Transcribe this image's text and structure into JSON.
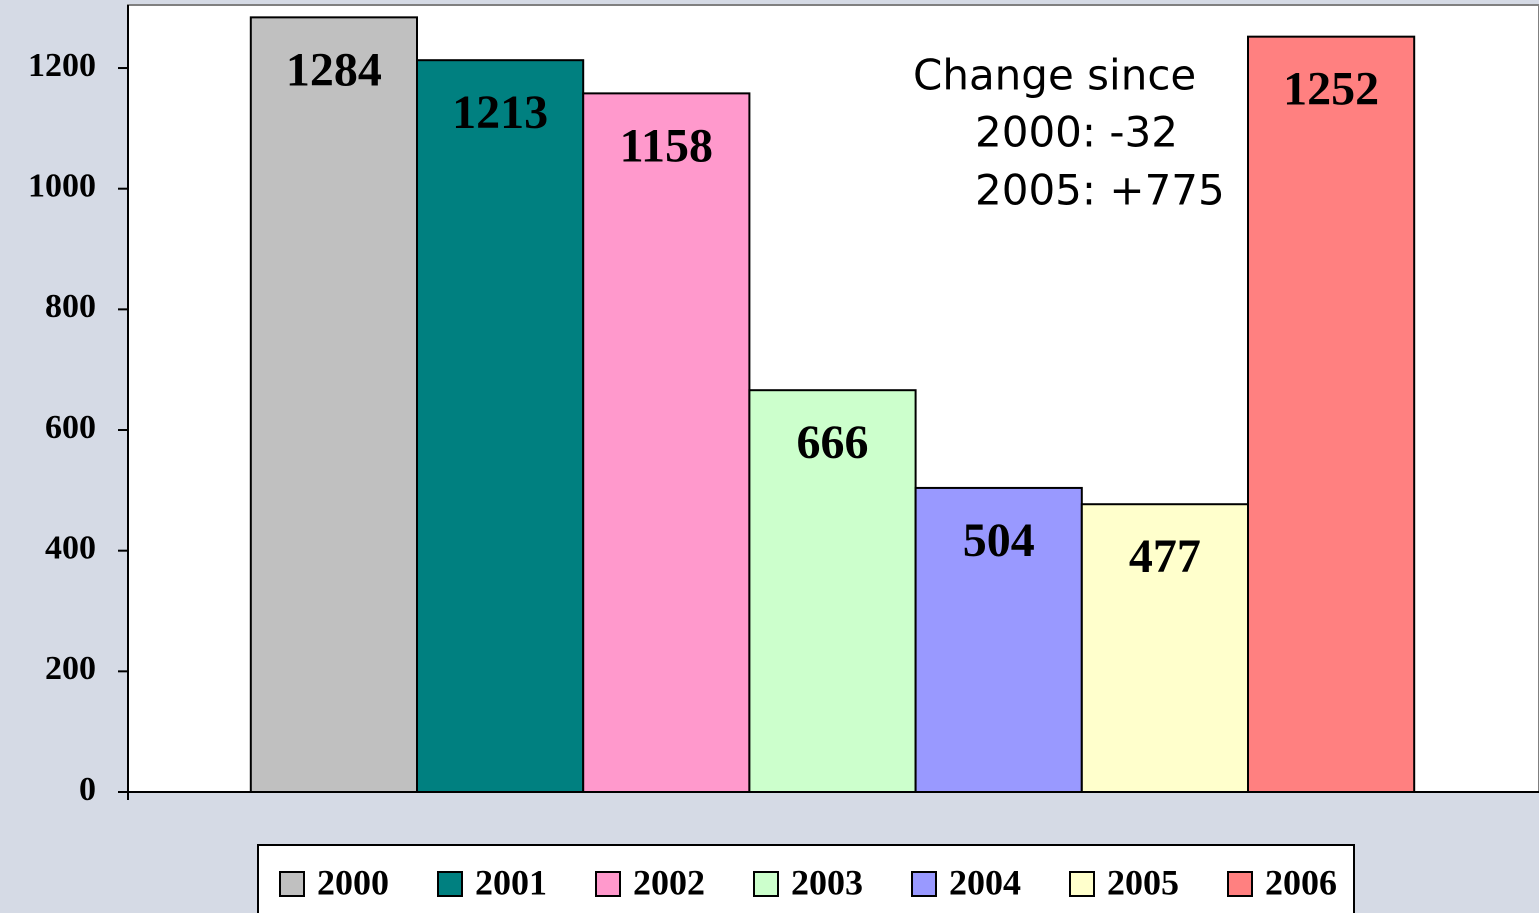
{
  "chart_data": {
    "type": "bar",
    "categories": [
      null
    ],
    "series": [
      {
        "name": "2000",
        "color": "#c0c0c0",
        "values": [
          1284
        ]
      },
      {
        "name": "2001",
        "color": "#008080",
        "values": [
          1213
        ]
      },
      {
        "name": "2002",
        "color": "#ff99cc",
        "values": [
          1158
        ]
      },
      {
        "name": "2003",
        "color": "#ccffcc",
        "values": [
          666
        ]
      },
      {
        "name": "2004",
        "color": "#9999ff",
        "values": [
          504
        ]
      },
      {
        "name": "2005",
        "color": "#ffffcc",
        "values": [
          477
        ]
      },
      {
        "name": "2006",
        "color": "#ff8080",
        "values": [
          1252
        ]
      }
    ],
    "annotations": [
      "Change since",
      "2000: -32",
      "2005: +775"
    ],
    "ylim": [
      0,
      1300
    ],
    "yticks": [
      0,
      200,
      400,
      600,
      800,
      1000,
      1200
    ],
    "legend": "bottom"
  }
}
